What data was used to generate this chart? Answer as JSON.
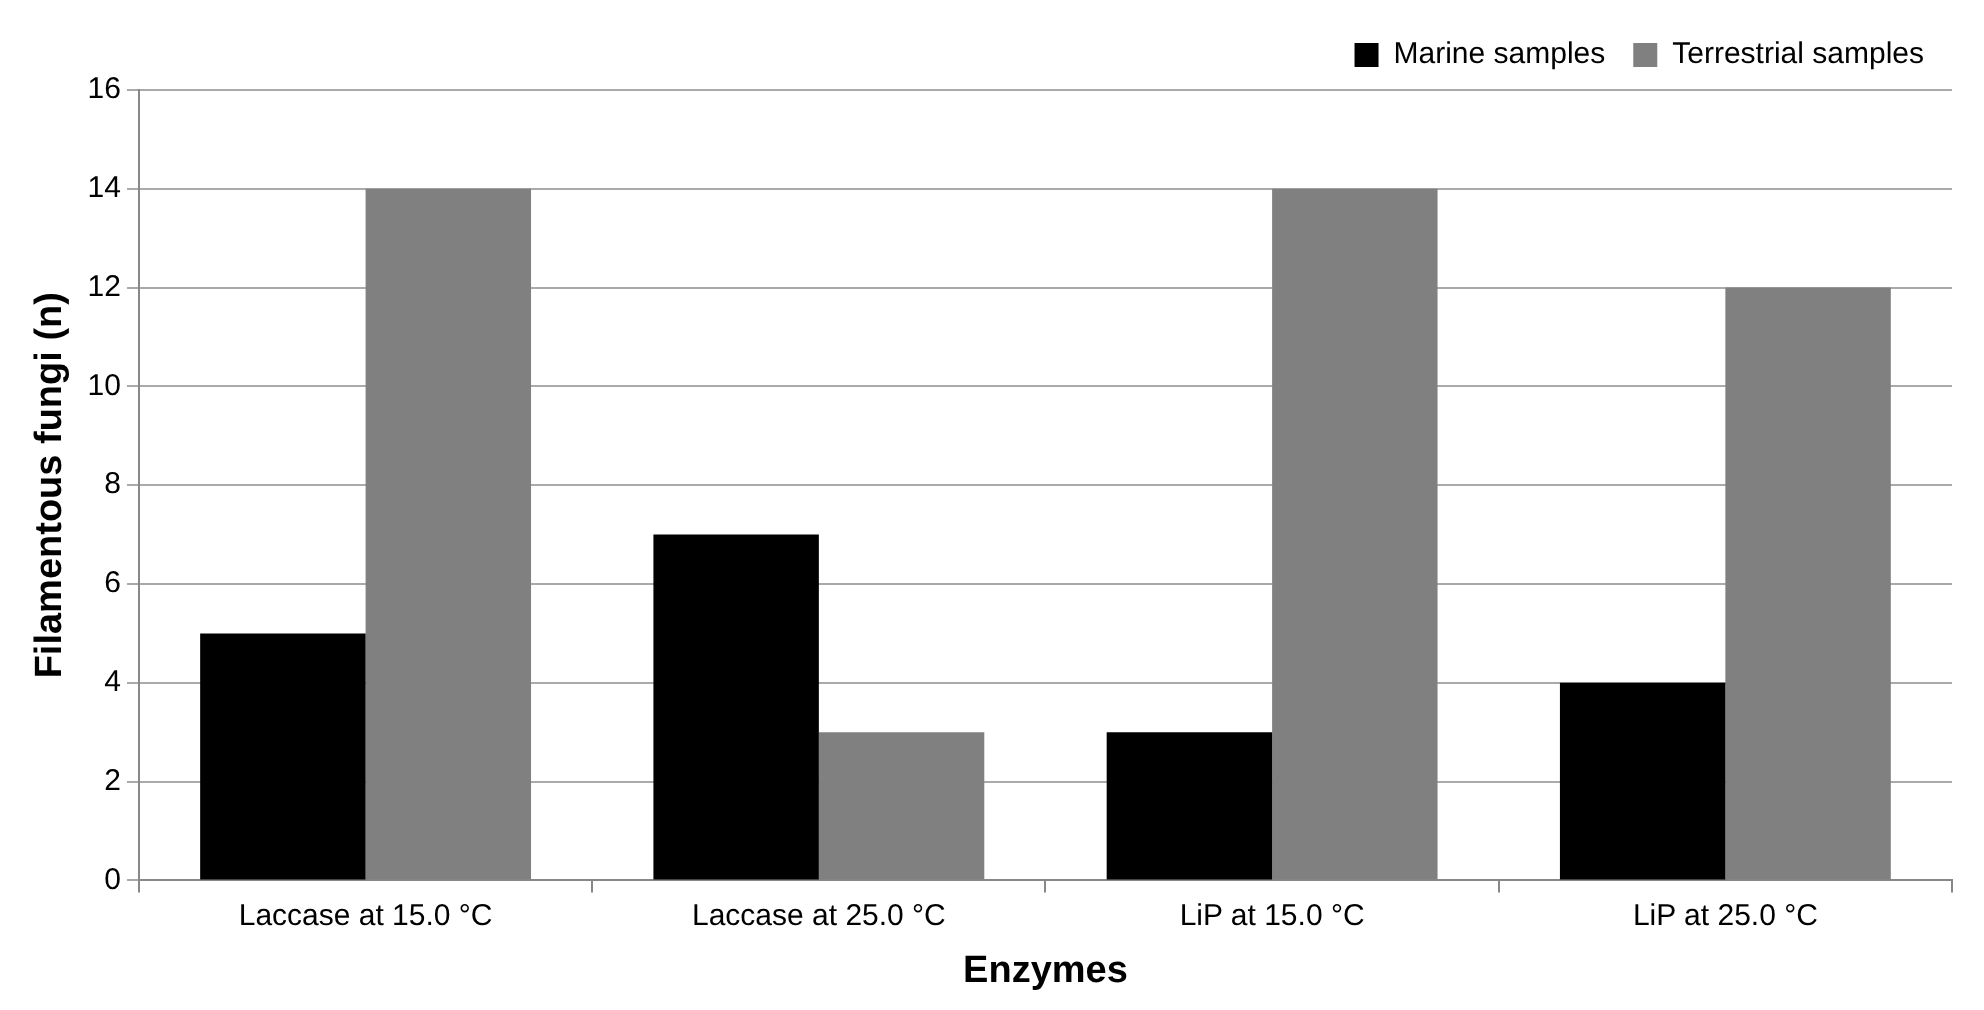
{
  "chart_data": {
    "type": "bar",
    "xlabel": "Enzymes",
    "ylabel": "Filamentous fungi (n)",
    "categories": [
      "Laccase at 15.0 °C",
      "Laccase at 25.0 °C",
      "LiP at 15.0 °C",
      "LiP at 25.0 °C"
    ],
    "series": [
      {
        "name": "Marine samples",
        "color": "#000000",
        "values": [
          5,
          7,
          3,
          4
        ]
      },
      {
        "name": "Terrestrial samples",
        "color": "#808080",
        "values": [
          14,
          3,
          14,
          12
        ]
      }
    ],
    "ylim": [
      0,
      16
    ],
    "yticks": [
      0,
      2,
      4,
      6,
      8,
      10,
      12,
      14,
      16
    ],
    "grid": "y",
    "legend": "top right"
  }
}
